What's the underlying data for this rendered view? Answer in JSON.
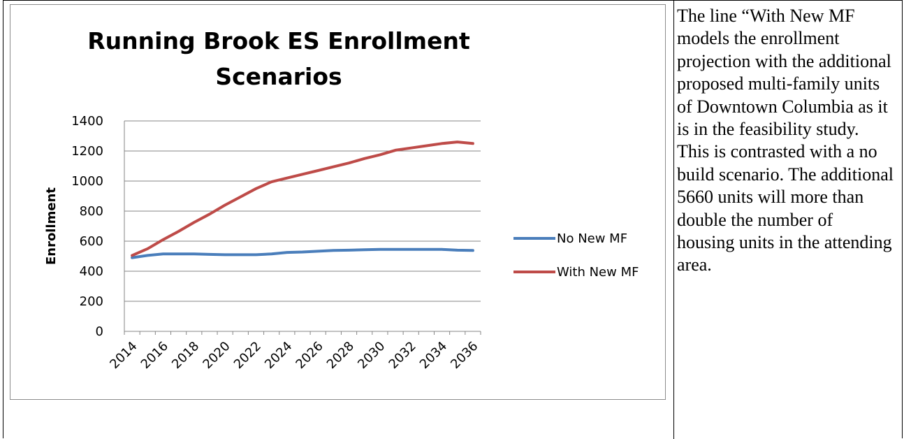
{
  "description_text": "The line “With New MF models the enrollment projection with the additional proposed multi-family units of Downtown Columbia as it is in the feasibility study. This is contrasted with a no build scenario. The additional 5660 units will more than double the number of housing units in the attending area.",
  "chart_data": {
    "type": "line",
    "title_lines": [
      "Running Brook ES Enrollment",
      "Scenarios"
    ],
    "xlabel": "",
    "ylabel": "Enrollment",
    "x": [
      2014,
      2015,
      2016,
      2017,
      2018,
      2019,
      2020,
      2021,
      2022,
      2023,
      2024,
      2025,
      2026,
      2027,
      2028,
      2029,
      2030,
      2031,
      2032,
      2033,
      2034,
      2035,
      2036
    ],
    "x_tick_labels": [
      "2014",
      "2016",
      "2018",
      "2020",
      "2022",
      "2024",
      "2026",
      "2028",
      "2030",
      "2032",
      "2034",
      "2036"
    ],
    "ylim": [
      0,
      1400
    ],
    "y_ticks": [
      0,
      200,
      400,
      600,
      800,
      1000,
      1200,
      1400
    ],
    "grid": true,
    "legend_position": "right",
    "series": [
      {
        "name": "No New MF",
        "color": "#4a7ebb",
        "values": [
          490,
          505,
          515,
          515,
          515,
          512,
          510,
          510,
          510,
          515,
          525,
          528,
          533,
          538,
          540,
          543,
          545,
          545,
          545,
          545,
          545,
          540,
          538
        ]
      },
      {
        "name": "With New MF",
        "color": "#be4b48",
        "values": [
          505,
          550,
          610,
          665,
          725,
          780,
          840,
          895,
          950,
          995,
          1020,
          1045,
          1070,
          1095,
          1120,
          1150,
          1175,
          1205,
          1220,
          1235,
          1250,
          1260,
          1250
        ]
      }
    ]
  }
}
